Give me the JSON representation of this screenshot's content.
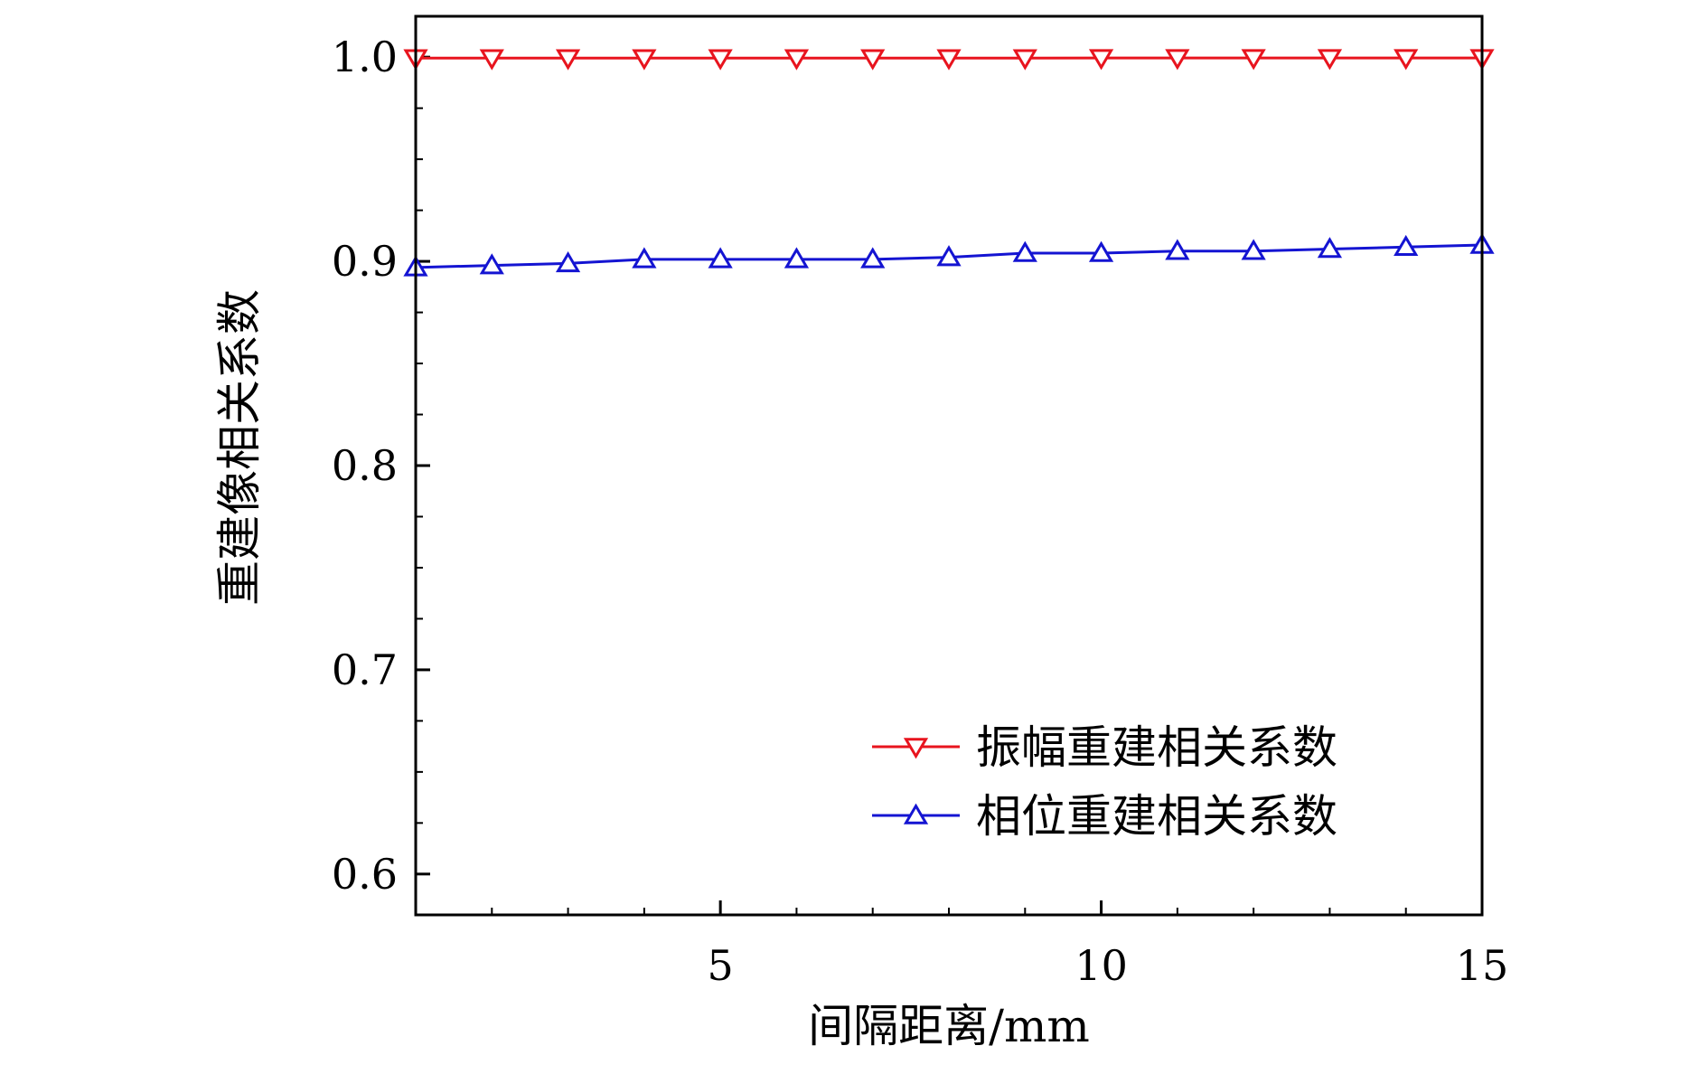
{
  "chart_data": {
    "type": "line",
    "title": "",
    "xlabel": "间隔距离/mm",
    "ylabel": "重建像相关系数",
    "xlim": [
      1,
      15
    ],
    "ylim": [
      0.58,
      1.02
    ],
    "xticks": [
      5,
      10,
      15
    ],
    "xtick_labels": [
      "5",
      "10",
      "15"
    ],
    "yticks": [
      0.6,
      0.7,
      0.8,
      0.9,
      1.0
    ],
    "ytick_labels": [
      "0.6",
      "0.7",
      "0.8",
      "0.9",
      "1.0"
    ],
    "grid": false,
    "legend_position": "bottom-right",
    "x": [
      1,
      2,
      3,
      4,
      5,
      6,
      7,
      8,
      9,
      10,
      11,
      12,
      13,
      14,
      15
    ],
    "series": [
      {
        "name": "振幅重建相关系数",
        "color": "#e8141e",
        "marker": "triangle-down",
        "values": [
          0.9995,
          0.9995,
          0.9995,
          0.9995,
          0.9995,
          0.9995,
          0.9995,
          0.9995,
          0.9995,
          0.9996,
          0.9996,
          0.9996,
          0.9996,
          0.9996,
          0.9996
        ]
      },
      {
        "name": "相位重建相关系数",
        "color": "#1414d2",
        "marker": "triangle-up",
        "values": [
          0.897,
          0.898,
          0.899,
          0.901,
          0.901,
          0.901,
          0.901,
          0.902,
          0.904,
          0.904,
          0.905,
          0.905,
          0.906,
          0.907,
          0.908
        ]
      }
    ]
  }
}
